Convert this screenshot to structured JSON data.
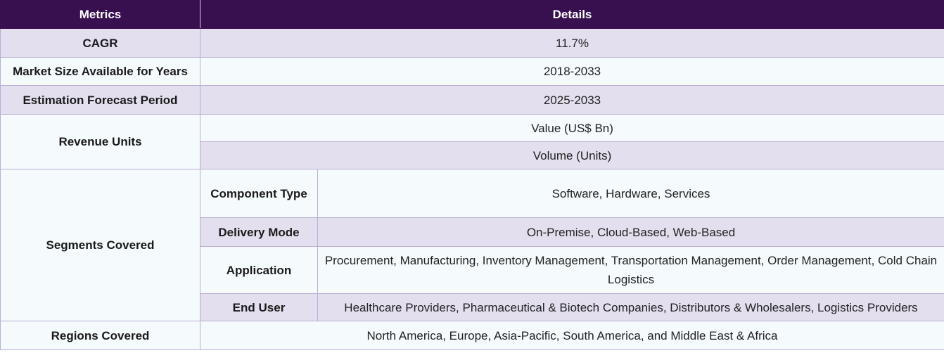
{
  "header": {
    "metrics": "Metrics",
    "details": "Details"
  },
  "rows": {
    "cagr": {
      "metric": "CAGR",
      "value": "11.7%"
    },
    "market_size": {
      "metric": "Market Size Available for Years",
      "value": "2018-2033"
    },
    "forecast": {
      "metric": "Estimation Forecast Period",
      "value": "2025-2033"
    },
    "revenue_units": {
      "metric": "Revenue Units",
      "values": [
        "Value (US$ Bn)",
        "Volume (Units)"
      ]
    },
    "segments": {
      "metric": "Segments Covered",
      "items": [
        {
          "label": "Component Type",
          "value": "Software, Hardware, Services"
        },
        {
          "label": "Delivery Mode",
          "value": "On-Premise, Cloud-Based, Web-Based"
        },
        {
          "label": "Application",
          "value": "Procurement, Manufacturing, Inventory Management, Transportation Management, Order Management, Cold Chain Logistics"
        },
        {
          "label": "End User",
          "value": "Healthcare Providers, Pharmaceutical & Biotech Companies, Distributors & Wholesalers, Logistics Providers"
        }
      ]
    },
    "regions": {
      "metric": "Regions Covered",
      "value": "North America, Europe, Asia-Pacific, South America, and Middle East & Africa"
    }
  },
  "colors": {
    "header_bg": "#380f4f",
    "shaded_row": "#e3dfee",
    "light_row": "#f5fafd",
    "border": "#b8aed3"
  }
}
